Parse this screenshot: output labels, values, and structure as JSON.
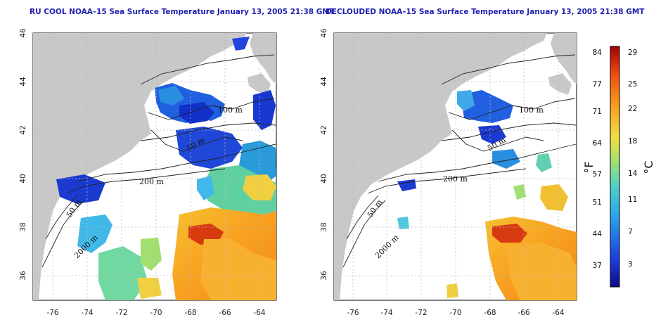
{
  "panels": [
    {
      "id": "left",
      "title": "RU COOL NOAA–15 Sea Surface Temperature January 13, 2005 21:38 GMT",
      "variant": "cloudy"
    },
    {
      "id": "right",
      "title": "DECLOUDED NOAA–15 Sea Surface Temperature January 13, 2005 21:38 GMT",
      "variant": "declouded"
    }
  ],
  "axes": {
    "lon_ticks": [
      "-76",
      "-74",
      "-72",
      "-70",
      "-68",
      "-66",
      "-64"
    ],
    "lat_ticks": [
      "46",
      "44",
      "42",
      "40",
      "38",
      "36"
    ],
    "lon_range": [
      -77.2,
      -63.0
    ],
    "lat_range": [
      35.0,
      46.0
    ]
  },
  "contours": [
    "100 m",
    "50 m",
    "200 m",
    "50 m",
    "2000 m"
  ],
  "colorbar": {
    "fahrenheit": [
      "84",
      "77",
      "71",
      "64",
      "57",
      "51",
      "44",
      "37"
    ],
    "celsius": [
      "29",
      "25",
      "22",
      "18",
      "14",
      "11",
      "7",
      "3"
    ],
    "f_unit": "°F",
    "c_unit": "°C",
    "colors": [
      "#0a0a8c",
      "#1c40e0",
      "#2aa8e8",
      "#50d0c8",
      "#a0e070",
      "#f0e040",
      "#f8a020",
      "#f05010",
      "#a00000"
    ]
  },
  "colors": {
    "land": "#c8c8c8",
    "ocean": "#ffffff",
    "title": "#1f1fb0"
  }
}
